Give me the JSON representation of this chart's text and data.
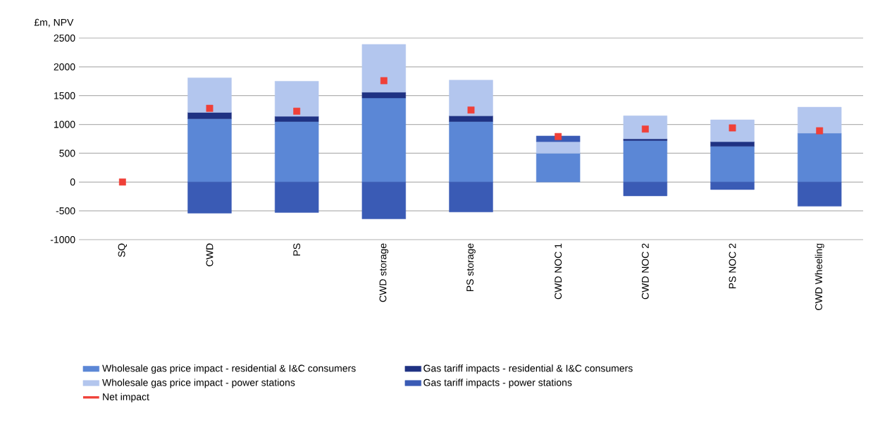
{
  "chart_data": {
    "type": "bar",
    "stacked": true,
    "ylabel": "£m, NPV",
    "categories": [
      "SQ",
      "CWD",
      "PS",
      "CWD storage",
      "PS storage",
      "CWD NOC 1",
      "CWD NOC 2",
      "PS NOC 2",
      "CWD Wheeling"
    ],
    "series": [
      {
        "name": "Wholesale gas price impact - residential & I&C consumers",
        "color": "#5b87d6",
        "values": [
          0,
          1100,
          1050,
          1460,
          1050,
          500,
          720,
          620,
          850
        ]
      },
      {
        "name": "Gas tariff impacts - residential & I&C consumers",
        "color": "#1f3283",
        "values": [
          0,
          110,
          90,
          100,
          100,
          0,
          30,
          80,
          0
        ]
      },
      {
        "name": "Wholesale gas price impact - power stations",
        "color": "#b3c6ee",
        "values": [
          0,
          600,
          610,
          830,
          620,
          200,
          400,
          380,
          450
        ]
      },
      {
        "name": "Gas tariff impacts - power stations",
        "color": "#3a5bb5",
        "values": [
          0,
          -540,
          -530,
          -640,
          -520,
          100,
          -240,
          -130,
          -420
        ]
      },
      {
        "name": "Net impact",
        "type": "scatter",
        "marker": "square",
        "color": "#f04038",
        "values": [
          0,
          1280,
          1230,
          1760,
          1250,
          790,
          920,
          940,
          890
        ]
      }
    ],
    "ylim": [
      -1000,
      2500
    ],
    "yticks": [
      -1000,
      -500,
      0,
      500,
      1000,
      1500,
      2000,
      2500
    ],
    "grid": "y",
    "legend": "bottom"
  }
}
